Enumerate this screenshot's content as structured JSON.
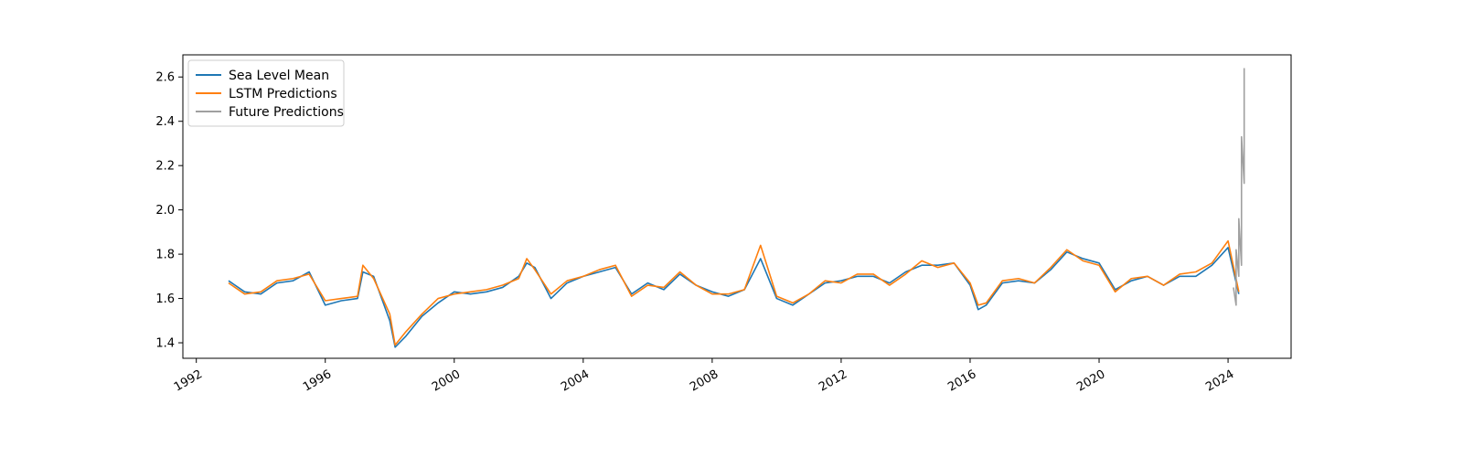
{
  "chart_data": {
    "type": "line",
    "title": "",
    "xlabel": "",
    "ylabel": "",
    "xlim": [
      "1991-08-01",
      "2025-12-15"
    ],
    "ylim": [
      1.33,
      2.7
    ],
    "grid": false,
    "legend_position": "top-left",
    "x_ticks": [
      "1992",
      "1996",
      "2000",
      "2004",
      "2008",
      "2012",
      "2016",
      "2020",
      "2024"
    ],
    "y_ticks": [
      "1.4",
      "1.6",
      "1.8",
      "2.0",
      "2.2",
      "2.4",
      "2.6"
    ],
    "series": [
      {
        "name": "Sea Level Mean",
        "color": "#1f77b4",
        "x": [
          "1993-01",
          "1993-07",
          "1994-01",
          "1994-07",
          "1995-01",
          "1995-07",
          "1996-01",
          "1996-07",
          "1997-01",
          "1997-03",
          "1997-07",
          "1998-01",
          "1998-03",
          "1998-07",
          "1999-01",
          "1999-07",
          "2000-01",
          "2000-07",
          "2001-01",
          "2001-07",
          "2002-01",
          "2002-04",
          "2002-07",
          "2003-01",
          "2003-07",
          "2004-01",
          "2004-07",
          "2005-01",
          "2005-07",
          "2006-01",
          "2006-07",
          "2007-01",
          "2007-07",
          "2008-01",
          "2008-07",
          "2009-01",
          "2009-07",
          "2010-01",
          "2010-07",
          "2011-01",
          "2011-07",
          "2012-01",
          "2012-07",
          "2013-01",
          "2013-07",
          "2014-01",
          "2014-07",
          "2015-01",
          "2015-07",
          "2016-01",
          "2016-04",
          "2016-07",
          "2017-01",
          "2017-07",
          "2018-01",
          "2018-07",
          "2019-01",
          "2019-07",
          "2020-01",
          "2020-07",
          "2021-01",
          "2021-07",
          "2022-01",
          "2022-07",
          "2023-01",
          "2023-07",
          "2024-01",
          "2024-05"
        ],
        "values": [
          1.68,
          1.63,
          1.62,
          1.67,
          1.68,
          1.72,
          1.57,
          1.59,
          1.6,
          1.72,
          1.7,
          1.5,
          1.38,
          1.43,
          1.52,
          1.58,
          1.63,
          1.62,
          1.63,
          1.65,
          1.7,
          1.76,
          1.74,
          1.6,
          1.67,
          1.7,
          1.72,
          1.74,
          1.62,
          1.67,
          1.64,
          1.71,
          1.66,
          1.63,
          1.61,
          1.64,
          1.78,
          1.6,
          1.57,
          1.62,
          1.67,
          1.68,
          1.7,
          1.7,
          1.67,
          1.72,
          1.75,
          1.75,
          1.76,
          1.66,
          1.55,
          1.57,
          1.67,
          1.68,
          1.67,
          1.73,
          1.81,
          1.78,
          1.76,
          1.64,
          1.68,
          1.7,
          1.66,
          1.7,
          1.7,
          1.75,
          1.83,
          1.62
        ]
      },
      {
        "name": "LSTM Predictions",
        "color": "#ff7f0e",
        "x": [
          "1993-01",
          "1993-07",
          "1994-01",
          "1994-07",
          "1995-01",
          "1995-07",
          "1996-01",
          "1996-07",
          "1997-01",
          "1997-03",
          "1997-07",
          "1998-01",
          "1998-03",
          "1998-07",
          "1999-01",
          "1999-07",
          "2000-01",
          "2000-07",
          "2001-01",
          "2001-07",
          "2002-01",
          "2002-04",
          "2002-07",
          "2003-01",
          "2003-07",
          "2004-01",
          "2004-07",
          "2005-01",
          "2005-07",
          "2006-01",
          "2006-07",
          "2007-01",
          "2007-07",
          "2008-01",
          "2008-07",
          "2009-01",
          "2009-07",
          "2010-01",
          "2010-07",
          "2011-01",
          "2011-07",
          "2012-01",
          "2012-07",
          "2013-01",
          "2013-07",
          "2014-01",
          "2014-07",
          "2015-01",
          "2015-07",
          "2016-01",
          "2016-04",
          "2016-07",
          "2017-01",
          "2017-07",
          "2018-01",
          "2018-07",
          "2019-01",
          "2019-07",
          "2020-01",
          "2020-07",
          "2021-01",
          "2021-07",
          "2022-01",
          "2022-07",
          "2023-01",
          "2023-07",
          "2024-01",
          "2024-05"
        ],
        "values": [
          1.67,
          1.62,
          1.63,
          1.68,
          1.69,
          1.71,
          1.59,
          1.6,
          1.61,
          1.75,
          1.69,
          1.53,
          1.39,
          1.45,
          1.53,
          1.6,
          1.62,
          1.63,
          1.64,
          1.66,
          1.69,
          1.78,
          1.73,
          1.62,
          1.68,
          1.7,
          1.73,
          1.75,
          1.61,
          1.66,
          1.65,
          1.72,
          1.66,
          1.62,
          1.62,
          1.64,
          1.84,
          1.61,
          1.58,
          1.62,
          1.68,
          1.67,
          1.71,
          1.71,
          1.66,
          1.71,
          1.77,
          1.74,
          1.76,
          1.67,
          1.57,
          1.58,
          1.68,
          1.69,
          1.67,
          1.74,
          1.82,
          1.77,
          1.75,
          1.63,
          1.69,
          1.7,
          1.66,
          1.71,
          1.72,
          1.76,
          1.86,
          1.63
        ]
      },
      {
        "name": "Future Predictions",
        "color": "#a0a0a0",
        "x": [
          "2024-03",
          "2024-04",
          "2024-04",
          "2024-05",
          "2024-05",
          "2024-06",
          "2024-06",
          "2024-06",
          "2024-06",
          "2024-07",
          "2024-07"
        ],
        "values": [
          1.65,
          1.57,
          1.82,
          1.7,
          1.96,
          1.75,
          2.23,
          2.04,
          2.33,
          2.12,
          2.64
        ]
      }
    ]
  }
}
